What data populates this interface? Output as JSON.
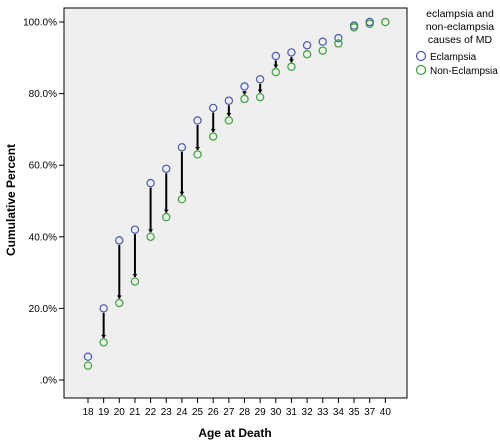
{
  "chart_data": {
    "type": "scatter",
    "xlabel": "Age at Death",
    "ylabel": "Cumulative Percent",
    "categories": [
      "18",
      "19",
      "20",
      "21",
      "22",
      "23",
      "24",
      "25",
      "26",
      "27",
      "28",
      "29",
      "30",
      "31",
      "32",
      "33",
      "34",
      "35",
      "37",
      "40"
    ],
    "y_ticks": [
      ".0%",
      "20.0%",
      "40.0%",
      "60.0%",
      "80.0%",
      "100.0%"
    ],
    "ylim": [
      0,
      100
    ],
    "grid": false,
    "legend": {
      "title_lines": [
        "eclampsia and",
        "non-eclampsia",
        "causes of MD"
      ],
      "position": "top-right, outside plot"
    },
    "series": [
      {
        "name": "Eclampsia",
        "color": "#4a5aa8",
        "values": [
          6.5,
          20.0,
          39.0,
          42.0,
          55.0,
          59.0,
          65.0,
          72.5,
          76.0,
          78.0,
          82.0,
          84.0,
          90.5,
          91.5,
          93.5,
          94.5,
          95.5,
          99.0,
          100.0,
          null
        ]
      },
      {
        "name": "Non-Eclampsia",
        "color": "#3aa13a",
        "values": [
          4.0,
          10.5,
          21.5,
          27.5,
          40.0,
          45.5,
          50.5,
          63.0,
          68.0,
          72.5,
          78.5,
          79.0,
          86.0,
          87.5,
          91.0,
          92.0,
          94.0,
          98.5,
          99.5,
          100.0
        ]
      }
    ],
    "connectors": "vertical black bars with small arrowheads linking the two series at each age"
  }
}
